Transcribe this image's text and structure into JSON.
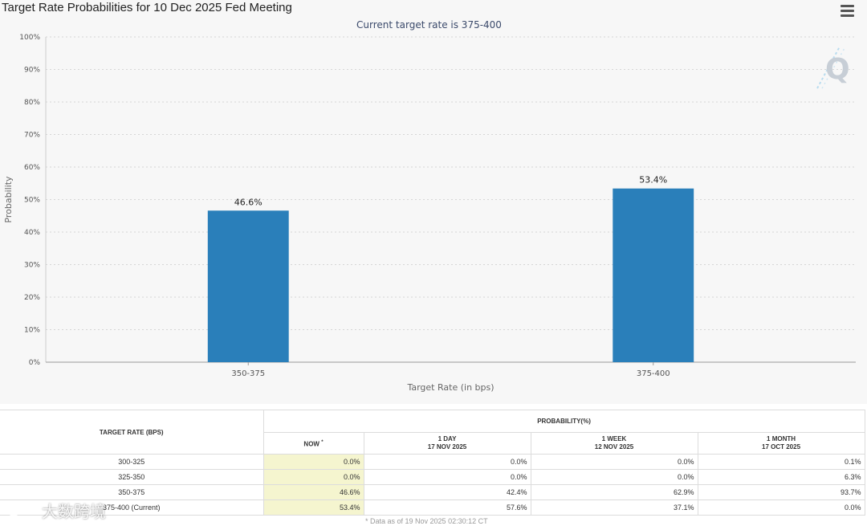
{
  "chart_data": {
    "type": "bar",
    "title": "Target Rate Probabilities for 10 Dec 2025 Fed Meeting",
    "subtitle": "Current target rate is 375-400",
    "categories": [
      "350-375",
      "375-400"
    ],
    "values": [
      46.6,
      53.4
    ],
    "value_labels": [
      "46.6%",
      "53.4%"
    ],
    "xlabel": "Target Rate (in bps)",
    "ylabel": "Probability",
    "ylim": [
      0,
      100
    ],
    "yticks": [
      0,
      10,
      20,
      30,
      40,
      50,
      60,
      70,
      80,
      90,
      100
    ],
    "ytick_labels": [
      "0%",
      "10%",
      "20%",
      "30%",
      "40%",
      "50%",
      "60%",
      "70%",
      "80%",
      "90%",
      "100%"
    ],
    "grid": true,
    "bar_color": "#2a7fba"
  },
  "table": {
    "rate_header": "TARGET RATE (BPS)",
    "group_header": "PROBABILITY(%)",
    "columns": [
      {
        "label": "NOW",
        "marker": "*",
        "date": ""
      },
      {
        "label": "1 DAY",
        "date": "17 NOV 2025"
      },
      {
        "label": "1 WEEK",
        "date": "12 NOV 2025"
      },
      {
        "label": "1 MONTH",
        "date": "17 OCT 2025"
      }
    ],
    "rows": [
      {
        "rate": "300-325",
        "values": [
          "0.0%",
          "0.0%",
          "0.0%",
          "0.1%"
        ]
      },
      {
        "rate": "325-350",
        "values": [
          "0.0%",
          "0.0%",
          "0.0%",
          "6.3%"
        ]
      },
      {
        "rate": "350-375",
        "values": [
          "46.6%",
          "42.4%",
          "62.9%",
          "93.7%"
        ]
      },
      {
        "rate": "375-400 (Current)",
        "values": [
          "53.4%",
          "57.6%",
          "37.1%",
          "0.0%"
        ]
      }
    ],
    "footnote": "* Data as of 19 Nov 2025 02:30:12 CT"
  },
  "watermark": {
    "text": "大数跨境"
  },
  "icons": {
    "menu": "hamburger-menu-icon",
    "logo": "q-logo-icon"
  },
  "colors": {
    "bar": "#2a7fba",
    "now_column": "#f5f5cf",
    "subtitle": "#3b4a6b"
  }
}
